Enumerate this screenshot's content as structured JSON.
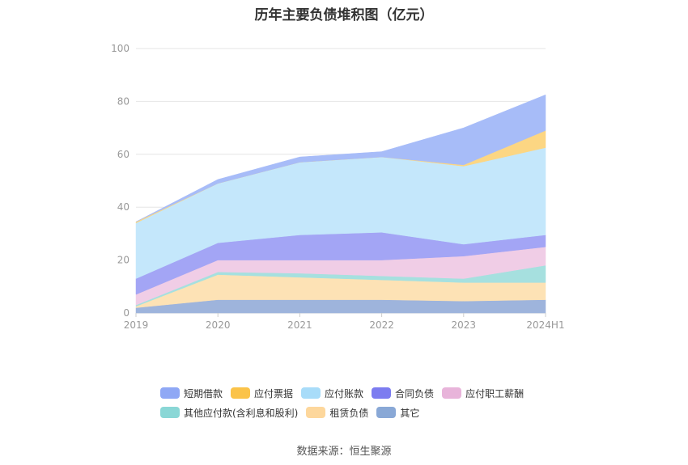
{
  "title": "历年主要负债堆积图（亿元）",
  "source": "数据来源：恒生聚源",
  "chart_data": {
    "type": "area",
    "stacked": true,
    "x": [
      "2019",
      "2020",
      "2021",
      "2022",
      "2023",
      "2024H1"
    ],
    "ylim": [
      0,
      100
    ],
    "yticks": [
      0,
      20,
      40,
      60,
      80,
      100
    ],
    "grid": true,
    "legend_position": "bottom",
    "series": [
      {
        "name": "其它",
        "color": "#9eb4dc",
        "values": [
          2.0,
          5.0,
          5.0,
          5.0,
          4.5,
          5.0
        ]
      },
      {
        "name": "租赁负债",
        "color": "#fde2b5",
        "values": [
          0.5,
          9.5,
          8.5,
          7.5,
          7.0,
          6.5
        ]
      },
      {
        "name": "其他应付款(含利息和股利)",
        "color": "#a6e0df",
        "values": [
          0.5,
          1.0,
          1.5,
          1.5,
          1.5,
          6.5
        ]
      },
      {
        "name": "应付职工薪酬",
        "color": "#f0cde6",
        "values": [
          4.0,
          4.5,
          5.0,
          6.0,
          8.5,
          7.0
        ]
      },
      {
        "name": "合同负债",
        "color": "#a3a5f5",
        "values": [
          6.0,
          6.5,
          9.5,
          10.5,
          4.5,
          4.5
        ]
      },
      {
        "name": "应付账款",
        "color": "#c4e7fb",
        "values": [
          21.0,
          22.5,
          27.5,
          28.5,
          29.5,
          33.0
        ]
      },
      {
        "name": "应付票据",
        "color": "#fcd683",
        "values": [
          0.5,
          0.0,
          0.0,
          0.0,
          0.5,
          6.5
        ]
      },
      {
        "name": "短期借款",
        "color": "#a7bcf8",
        "values": [
          0.0,
          1.5,
          2.0,
          2.0,
          14.0,
          13.5
        ]
      }
    ]
  },
  "legend": {
    "row1": [
      {
        "label": "短期借款",
        "color": "#8fa8f5"
      },
      {
        "label": "应付票据",
        "color": "#fbc349"
      },
      {
        "label": "应付账款",
        "color": "#a8dcf9"
      },
      {
        "label": "合同负债",
        "color": "#7c7cf0"
      },
      {
        "label": "应付职工薪酬",
        "color": "#e8b4da"
      }
    ],
    "row2": [
      {
        "label": "其他应付款(含利息和股利)",
        "color": "#8ad7d6"
      },
      {
        "label": "租赁负债",
        "color": "#fdd79c"
      },
      {
        "label": "其它",
        "color": "#89a8d6"
      }
    ]
  }
}
